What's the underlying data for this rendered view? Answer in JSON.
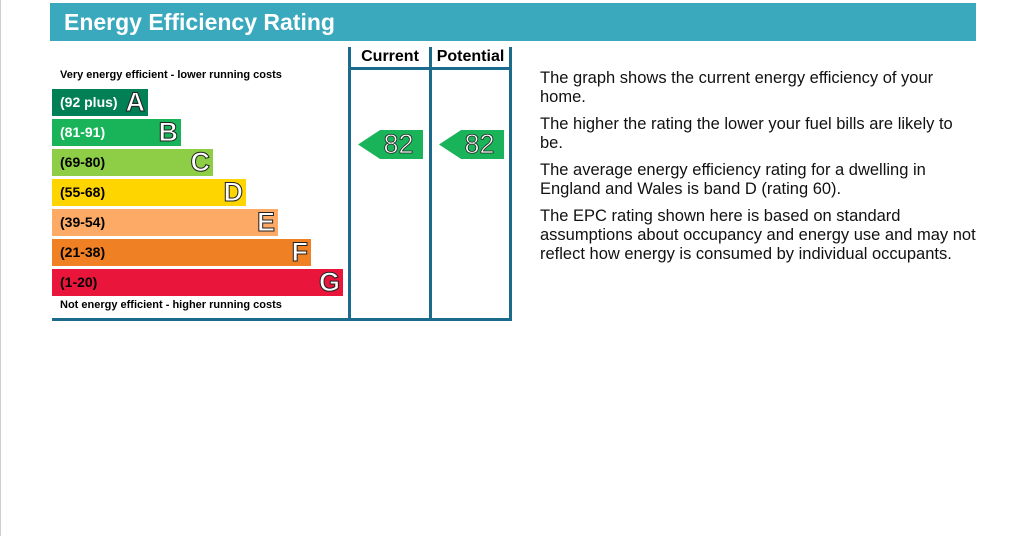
{
  "header": {
    "title": "Energy Efficiency Rating"
  },
  "chart": {
    "top_caption": "Very energy efficient - lower running costs",
    "bottom_caption": "Not energy efficient - higher running costs",
    "bands": [
      {
        "range": "(92 plus)",
        "letter": "A",
        "color": "#008054",
        "text_color": "#ffffff"
      },
      {
        "range": "(81-91)",
        "letter": "B",
        "color": "#19b459",
        "text_color": "#ffffff"
      },
      {
        "range": "(69-80)",
        "letter": "C",
        "color": "#8dce46",
        "text_color": "#000000"
      },
      {
        "range": "(55-68)",
        "letter": "D",
        "color": "#ffd500",
        "text_color": "#000000"
      },
      {
        "range": "(39-54)",
        "letter": "E",
        "color": "#fcaa65",
        "text_color": "#000000"
      },
      {
        "range": "(21-38)",
        "letter": "F",
        "color": "#ef8023",
        "text_color": "#000000"
      },
      {
        "range": "(1-20)",
        "letter": "G",
        "color": "#e9153b",
        "text_color": "#000000"
      }
    ],
    "columns": {
      "current_label": "Current",
      "potential_label": "Potential"
    },
    "current": {
      "value": "82",
      "color": "#19b459"
    },
    "potential": {
      "value": "82",
      "color": "#19b459"
    },
    "line_color": "#1c6a8c"
  },
  "description": {
    "paragraphs": [
      "The graph shows the current energy efficiency of your home.",
      "The higher the rating the lower your fuel bills are likely to be.",
      "The average energy efficiency rating for a dwelling in England and Wales is band D (rating 60).",
      "The EPC rating shown here is based on standard assumptions about occupancy and energy use and may not reflect how energy is consumed by individual occupants."
    ]
  }
}
